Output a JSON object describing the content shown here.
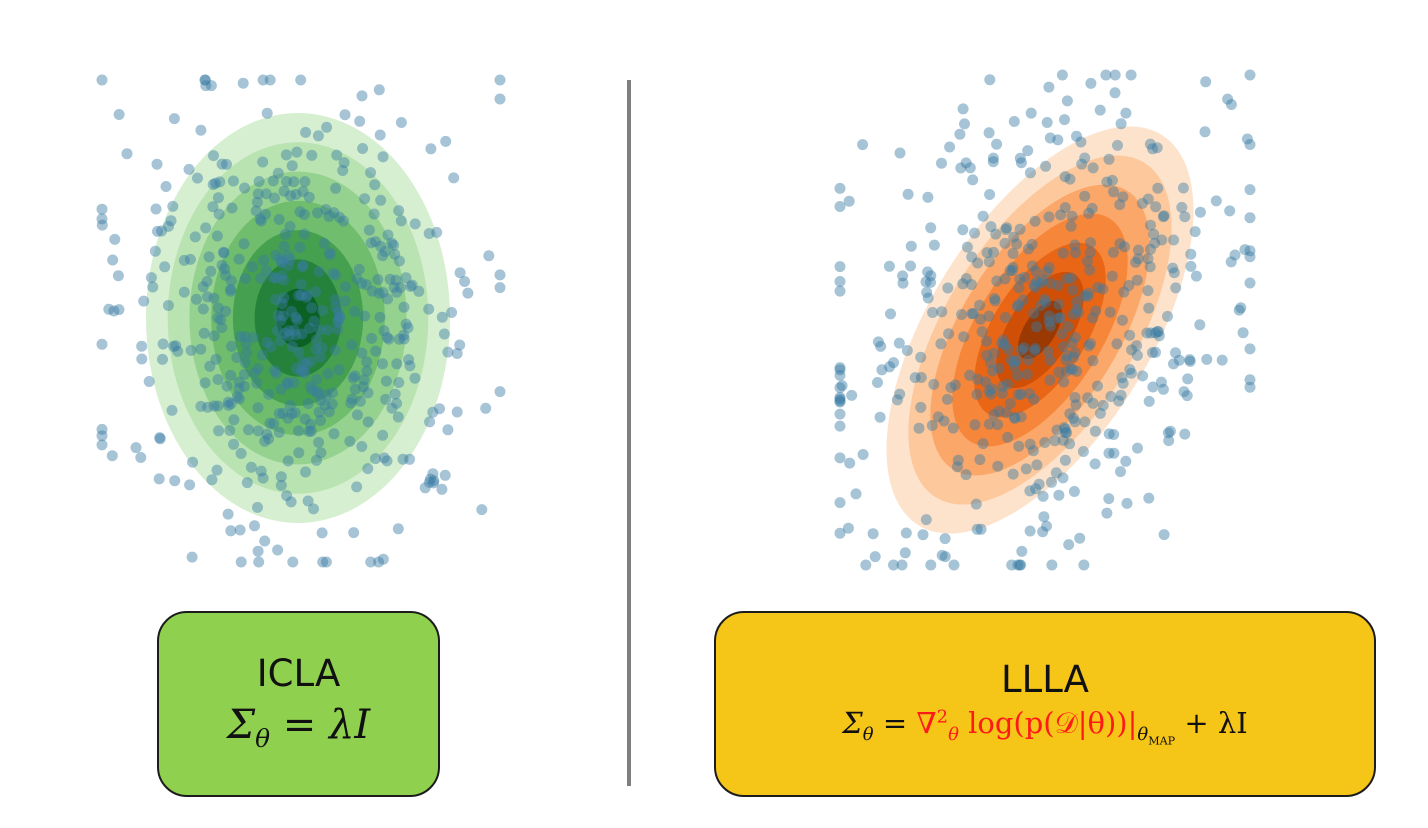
{
  "left_panel": {
    "name": "ICLA",
    "formula": {
      "lhs": "Σ",
      "lhs_sub": "θ",
      "eq": " = ",
      "rhs": "λI"
    },
    "box_color": "#8fd14f",
    "contour_colors": [
      "#d6efd0",
      "#b9e3b1",
      "#96d28f",
      "#6fbd6d",
      "#45a050",
      "#25823b",
      "#0b6124"
    ],
    "point_color": "#3a7ca5"
  },
  "right_panel": {
    "name": "LLLA",
    "formula": {
      "lhs": "Σ",
      "lhs_sub": "θ",
      "eq": " = ",
      "nabla": "∇",
      "nabla_sup": "2",
      "nabla_sub": "θ",
      "body": " log(p(𝒟|θ))|",
      "body_sub": "θ",
      "body_sub_sub": "MAP",
      "tail": " + λI"
    },
    "box_color": "#f5c518",
    "highlight_color": "#ff1a1a",
    "contour_colors": [
      "#fde3cc",
      "#fcc89c",
      "#fba769",
      "#f6863a",
      "#ea6617",
      "#cf4f06",
      "#9b3903"
    ],
    "point_color": "#3a7ca5"
  },
  "divider_color": "#7f7f7f"
}
